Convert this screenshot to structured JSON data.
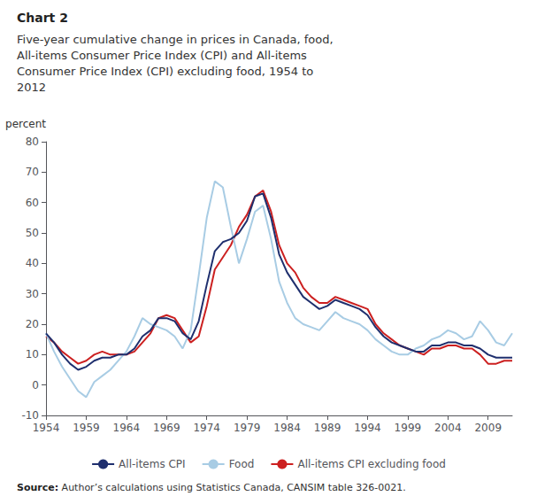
{
  "chart_data": {
    "type": "line",
    "title": "Chart 2",
    "subtitle": "Five-year cumulative change in prices in Canada, food,\nAll-items Consumer Price Index (CPI) and All-items\nConsumer Price Index (CPI) excluding food, 1954 to\n2012",
    "ylabel": "percent",
    "source_label": "Source:",
    "source": "Author’s calculations using Statistics Canada, CANSIM table 326-0021.",
    "xlim": [
      1954,
      2012
    ],
    "xticks": [
      1954,
      1959,
      1964,
      1969,
      1974,
      1979,
      1984,
      1989,
      1994,
      1999,
      2004,
      2009
    ],
    "ylim": [
      -10,
      80
    ],
    "yticks": [
      -10,
      0,
      10,
      20,
      30,
      40,
      50,
      60,
      70,
      80
    ],
    "grid": false,
    "legend": "bottom",
    "x": [
      1954,
      1955,
      1956,
      1957,
      1958,
      1959,
      1960,
      1961,
      1962,
      1963,
      1964,
      1965,
      1966,
      1967,
      1968,
      1969,
      1970,
      1971,
      1972,
      1973,
      1974,
      1975,
      1976,
      1977,
      1978,
      1979,
      1980,
      1981,
      1982,
      1983,
      1984,
      1985,
      1986,
      1987,
      1988,
      1989,
      1990,
      1991,
      1992,
      1993,
      1994,
      1995,
      1996,
      1997,
      1998,
      1999,
      2000,
      2001,
      2002,
      2003,
      2004,
      2005,
      2006,
      2007,
      2008,
      2009,
      2010,
      2011,
      2012
    ],
    "series": [
      {
        "name": "All-items CPI",
        "color": "#1f2f6e",
        "values": [
          17,
          14,
          10,
          7,
          5,
          6,
          8,
          9,
          9,
          10,
          10,
          12,
          16,
          18,
          22,
          22,
          21,
          17,
          15,
          21,
          33,
          44,
          47,
          48,
          50,
          54,
          62,
          63,
          55,
          43,
          37,
          33,
          29,
          27,
          25,
          26,
          28,
          27,
          26,
          25,
          23,
          19,
          16,
          14,
          13,
          12,
          11,
          11,
          13,
          13,
          14,
          14,
          13,
          13,
          12,
          10,
          9,
          9,
          9
        ]
      },
      {
        "name": "Food",
        "color": "#a8cce4",
        "values": [
          17,
          11,
          6,
          2,
          -2,
          -4,
          1,
          3,
          5,
          8,
          11,
          16,
          22,
          20,
          19,
          18,
          16,
          12,
          18,
          36,
          55,
          67,
          65,
          52,
          40,
          48,
          57,
          59,
          48,
          34,
          27,
          22,
          20,
          19,
          18,
          21,
          24,
          22,
          21,
          20,
          18,
          15,
          13,
          11,
          10,
          10,
          12,
          13,
          15,
          16,
          18,
          17,
          15,
          16,
          21,
          18,
          14,
          13,
          17
        ]
      },
      {
        "name": "All-items CPI excluding food",
        "color": "#cc2020",
        "values": [
          16,
          14,
          11,
          9,
          7,
          8,
          10,
          11,
          10,
          10,
          10,
          11,
          14,
          17,
          22,
          23,
          22,
          18,
          14,
          16,
          26,
          38,
          42,
          46,
          52,
          56,
          62,
          64,
          57,
          46,
          40,
          37,
          32,
          29,
          27,
          27,
          29,
          28,
          27,
          26,
          25,
          20,
          17,
          15,
          13,
          12,
          11,
          10,
          12,
          12,
          13,
          13,
          12,
          12,
          10,
          7,
          7,
          8,
          8
        ]
      }
    ]
  }
}
